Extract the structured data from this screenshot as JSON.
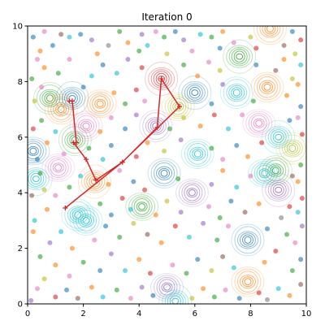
{
  "chart_data": {
    "type": "scatter",
    "title": "Iteration 0",
    "xlabel": "",
    "ylabel": "",
    "xlim": [
      0,
      10
    ],
    "ylim": [
      0,
      10
    ],
    "xticks": [
      "0",
      "2",
      "4",
      "6",
      "8",
      "10"
    ],
    "yticks": [
      "0",
      "2",
      "4",
      "6",
      "8",
      "10"
    ],
    "grid": false,
    "palette": [
      "#1f77b4",
      "#ff7f0e",
      "#2ca02c",
      "#d62728",
      "#9467bd",
      "#8c564b",
      "#e377c2",
      "#7f7f7f",
      "#bcbd22",
      "#17becf"
    ],
    "contour_centers": [
      {
        "x": 0.2,
        "y": 5.5,
        "color": "#1f77b4"
      },
      {
        "x": 0.3,
        "y": 4.5,
        "color": "#17becf"
      },
      {
        "x": 0.8,
        "y": 7.4,
        "color": "#2ca02c"
      },
      {
        "x": 1.2,
        "y": 7.0,
        "color": "#ff7f0e"
      },
      {
        "x": 1.1,
        "y": 4.9,
        "color": "#e377c2"
      },
      {
        "x": 1.6,
        "y": 7.4,
        "color": "#1f77b4"
      },
      {
        "x": 1.7,
        "y": 5.9,
        "color": "#2ca02c"
      },
      {
        "x": 2.1,
        "y": 6.4,
        "color": "#e377c2"
      },
      {
        "x": 2.6,
        "y": 7.2,
        "color": "#ff7f0e"
      },
      {
        "x": 2.4,
        "y": 4.4,
        "color": "#ff7f0e"
      },
      {
        "x": 1.8,
        "y": 3.2,
        "color": "#17becf"
      },
      {
        "x": 2.1,
        "y": 3.0,
        "color": "#17becf"
      },
      {
        "x": 4.1,
        "y": 3.5,
        "color": "#2ca02c"
      },
      {
        "x": 4.8,
        "y": 8.1,
        "color": "#d62728"
      },
      {
        "x": 4.6,
        "y": 6.4,
        "color": "#9467bd"
      },
      {
        "x": 4.9,
        "y": 4.7,
        "color": "#1f77b4"
      },
      {
        "x": 5.4,
        "y": 7.1,
        "color": "#bcbd22"
      },
      {
        "x": 6.0,
        "y": 7.6,
        "color": "#1f77b4"
      },
      {
        "x": 7.5,
        "y": 7.6,
        "color": "#17becf"
      },
      {
        "x": 6.1,
        "y": 5.4,
        "color": "#17becf"
      },
      {
        "x": 5.9,
        "y": 4.0,
        "color": "#9467bd"
      },
      {
        "x": 7.6,
        "y": 8.9,
        "color": "#2ca02c"
      },
      {
        "x": 8.7,
        "y": 9.9,
        "color": "#ff7f0e"
      },
      {
        "x": 8.6,
        "y": 7.8,
        "color": "#ff7f0e"
      },
      {
        "x": 8.3,
        "y": 6.5,
        "color": "#e377c2"
      },
      {
        "x": 9.0,
        "y": 6.0,
        "color": "#17becf"
      },
      {
        "x": 9.5,
        "y": 5.6,
        "color": "#bcbd22"
      },
      {
        "x": 8.9,
        "y": 4.8,
        "color": "#2ca02c"
      },
      {
        "x": 8.5,
        "y": 4.7,
        "color": "#17becf"
      },
      {
        "x": 9.0,
        "y": 4.1,
        "color": "#9467bd"
      },
      {
        "x": 7.9,
        "y": 2.3,
        "color": "#1f77b4"
      },
      {
        "x": 7.9,
        "y": 0.8,
        "color": "#ff7f0e"
      },
      {
        "x": 5.0,
        "y": 0.6,
        "color": "#9467bd"
      },
      {
        "x": 5.3,
        "y": 0.1,
        "color": "#17becf"
      }
    ],
    "path_series": {
      "color": "#d62728",
      "x": [
        1.5,
        1.6,
        1.75,
        1.65,
        2.1,
        2.45,
        3.4,
        4.65,
        4.8,
        5.45,
        3.4,
        1.35
      ],
      "y": [
        7.3,
        7.3,
        5.8,
        5.8,
        5.2,
        4.45,
        5.1,
        6.35,
        8.1,
        7.1,
        5.1,
        3.45
      ]
    },
    "points": [
      {
        "x": 0.12,
        "y": 0.12,
        "c": 4
      },
      {
        "x": 0.35,
        "y": 0.55,
        "c": 6
      },
      {
        "x": 0.45,
        "y": 1.7,
        "c": 2
      },
      {
        "x": 0.2,
        "y": 2.6,
        "c": 1
      },
      {
        "x": 0.25,
        "y": 3.0,
        "c": 9
      },
      {
        "x": 0.15,
        "y": 3.9,
        "c": 5
      },
      {
        "x": 0.45,
        "y": 4.7,
        "c": 2
      },
      {
        "x": 0.35,
        "y": 5.2,
        "c": 0
      },
      {
        "x": 0.2,
        "y": 6.3,
        "c": 3
      },
      {
        "x": 0.25,
        "y": 7.3,
        "c": 8
      },
      {
        "x": 0.15,
        "y": 8.1,
        "c": 2
      },
      {
        "x": 0.35,
        "y": 8.8,
        "c": 6
      },
      {
        "x": 0.2,
        "y": 9.6,
        "c": 0
      },
      {
        "x": 0.45,
        "y": 9.1,
        "c": 1
      },
      {
        "x": 0.6,
        "y": 9.8,
        "c": 6
      },
      {
        "x": 0.9,
        "y": 9.3,
        "c": 0
      },
      {
        "x": 1.2,
        "y": 9.7,
        "c": 5
      },
      {
        "x": 1.5,
        "y": 9.6,
        "c": 9
      },
      {
        "x": 1.9,
        "y": 9.7,
        "c": 0
      },
      {
        "x": 2.3,
        "y": 9.5,
        "c": 4
      },
      {
        "x": 2.9,
        "y": 9.3,
        "c": 7
      },
      {
        "x": 3.3,
        "y": 9.8,
        "c": 2
      },
      {
        "x": 3.6,
        "y": 9.4,
        "c": 1
      },
      {
        "x": 4.1,
        "y": 9.7,
        "c": 4
      },
      {
        "x": 4.3,
        "y": 9.3,
        "c": 9
      },
      {
        "x": 4.6,
        "y": 9.8,
        "c": 6
      },
      {
        "x": 4.9,
        "y": 9.6,
        "c": 2
      },
      {
        "x": 5.3,
        "y": 9.8,
        "c": 0
      },
      {
        "x": 5.6,
        "y": 9.5,
        "c": 4
      },
      {
        "x": 6.2,
        "y": 9.7,
        "c": 9
      },
      {
        "x": 6.6,
        "y": 9.6,
        "c": 2
      },
      {
        "x": 7.0,
        "y": 9.8,
        "c": 1
      },
      {
        "x": 7.4,
        "y": 9.4,
        "c": 6
      },
      {
        "x": 8.0,
        "y": 9.6,
        "c": 8
      },
      {
        "x": 9.2,
        "y": 9.3,
        "c": 5
      },
      {
        "x": 9.5,
        "y": 9.8,
        "c": 0
      },
      {
        "x": 9.8,
        "y": 9.5,
        "c": 3
      },
      {
        "x": 9.6,
        "y": 9.0,
        "c": 8
      },
      {
        "x": 9.8,
        "y": 8.6,
        "c": 9
      },
      {
        "x": 9.7,
        "y": 7.9,
        "c": 1
      },
      {
        "x": 9.8,
        "y": 7.1,
        "c": 0
      },
      {
        "x": 9.7,
        "y": 6.7,
        "c": 6
      },
      {
        "x": 9.85,
        "y": 6.1,
        "c": 3
      },
      {
        "x": 9.8,
        "y": 5.0,
        "c": 2
      },
      {
        "x": 9.7,
        "y": 4.4,
        "c": 1
      },
      {
        "x": 9.85,
        "y": 3.8,
        "c": 3
      },
      {
        "x": 9.7,
        "y": 3.3,
        "c": 9
      },
      {
        "x": 9.85,
        "y": 2.8,
        "c": 4
      },
      {
        "x": 9.6,
        "y": 2.2,
        "c": 6
      },
      {
        "x": 9.8,
        "y": 1.6,
        "c": 0
      },
      {
        "x": 9.5,
        "y": 1.2,
        "c": 2
      },
      {
        "x": 9.8,
        "y": 0.7,
        "c": 5
      },
      {
        "x": 9.4,
        "y": 0.3,
        "c": 1
      },
      {
        "x": 9.0,
        "y": 0.55,
        "c": 9
      },
      {
        "x": 8.6,
        "y": 0.15,
        "c": 7
      },
      {
        "x": 8.3,
        "y": 0.4,
        "c": 3
      },
      {
        "x": 7.6,
        "y": 0.2,
        "c": 0
      },
      {
        "x": 7.1,
        "y": 0.5,
        "c": 6
      },
      {
        "x": 6.7,
        "y": 0.25,
        "c": 2
      },
      {
        "x": 6.3,
        "y": 0.55,
        "c": 1
      },
      {
        "x": 5.9,
        "y": 0.2,
        "c": 8
      },
      {
        "x": 4.5,
        "y": 0.3,
        "c": 0
      },
      {
        "x": 4.1,
        "y": 0.6,
        "c": 4
      },
      {
        "x": 3.7,
        "y": 0.2,
        "c": 6
      },
      {
        "x": 3.2,
        "y": 0.5,
        "c": 2
      },
      {
        "x": 2.7,
        "y": 0.25,
        "c": 9
      },
      {
        "x": 2.3,
        "y": 0.6,
        "c": 1
      },
      {
        "x": 1.8,
        "y": 0.2,
        "c": 5
      },
      {
        "x": 1.4,
        "y": 0.5,
        "c": 0
      },
      {
        "x": 1.0,
        "y": 0.25,
        "c": 3
      },
      {
        "x": 0.6,
        "y": 0.9,
        "c": 8
      },
      {
        "x": 1.0,
        "y": 1.4,
        "c": 1
      },
      {
        "x": 1.5,
        "y": 1.0,
        "c": 6
      },
      {
        "x": 2.0,
        "y": 1.5,
        "c": 2
      },
      {
        "x": 2.6,
        "y": 1.2,
        "c": 0
      },
      {
        "x": 3.0,
        "y": 1.8,
        "c": 4
      },
      {
        "x": 3.5,
        "y": 1.2,
        "c": 9
      },
      {
        "x": 4.0,
        "y": 1.6,
        "c": 1
      },
      {
        "x": 4.4,
        "y": 1.1,
        "c": 3
      },
      {
        "x": 5.2,
        "y": 1.4,
        "c": 6
      },
      {
        "x": 5.7,
        "y": 1.1,
        "c": 2
      },
      {
        "x": 6.1,
        "y": 1.6,
        "c": 0
      },
      {
        "x": 6.6,
        "y": 1.2,
        "c": 8
      },
      {
        "x": 7.0,
        "y": 1.7,
        "c": 5
      },
      {
        "x": 7.4,
        "y": 1.3,
        "c": 9
      },
      {
        "x": 8.5,
        "y": 1.5,
        "c": 1
      },
      {
        "x": 8.9,
        "y": 1.9,
        "c": 3
      },
      {
        "x": 9.3,
        "y": 2.5,
        "c": 2
      },
      {
        "x": 0.8,
        "y": 2.2,
        "c": 4
      },
      {
        "x": 1.2,
        "y": 2.6,
        "c": 9
      },
      {
        "x": 1.6,
        "y": 2.0,
        "c": 1
      },
      {
        "x": 2.4,
        "y": 2.3,
        "c": 6
      },
      {
        "x": 2.8,
        "y": 2.8,
        "c": 0
      },
      {
        "x": 3.3,
        "y": 2.4,
        "c": 2
      },
      {
        "x": 3.8,
        "y": 2.9,
        "c": 8
      },
      {
        "x": 4.3,
        "y": 2.5,
        "c": 5
      },
      {
        "x": 4.8,
        "y": 2.2,
        "c": 1
      },
      {
        "x": 5.3,
        "y": 2.8,
        "c": 3
      },
      {
        "x": 5.8,
        "y": 2.4,
        "c": 9
      },
      {
        "x": 6.3,
        "y": 2.9,
        "c": 4
      },
      {
        "x": 6.8,
        "y": 2.3,
        "c": 2
      },
      {
        "x": 7.2,
        "y": 2.8,
        "c": 6
      },
      {
        "x": 8.6,
        "y": 2.7,
        "c": 0
      },
      {
        "x": 9.1,
        "y": 3.1,
        "c": 7
      },
      {
        "x": 0.7,
        "y": 3.4,
        "c": 1
      },
      {
        "x": 1.0,
        "y": 3.9,
        "c": 6
      },
      {
        "x": 2.6,
        "y": 3.6,
        "c": 2
      },
      {
        "x": 3.0,
        "y": 3.2,
        "c": 0
      },
      {
        "x": 3.4,
        "y": 3.8,
        "c": 3
      },
      {
        "x": 3.7,
        "y": 3.4,
        "c": 9
      },
      {
        "x": 4.6,
        "y": 3.2,
        "c": 1
      },
      {
        "x": 5.0,
        "y": 3.7,
        "c": 8
      },
      {
        "x": 5.5,
        "y": 3.3,
        "c": 4
      },
      {
        "x": 6.5,
        "y": 3.5,
        "c": 6
      },
      {
        "x": 6.9,
        "y": 3.1,
        "c": 2
      },
      {
        "x": 7.3,
        "y": 3.7,
        "c": 0
      },
      {
        "x": 7.8,
        "y": 3.3,
        "c": 5
      },
      {
        "x": 8.3,
        "y": 3.6,
        "c": 1
      },
      {
        "x": 9.4,
        "y": 3.5,
        "c": 3
      },
      {
        "x": 0.6,
        "y": 4.1,
        "c": 8
      },
      {
        "x": 1.5,
        "y": 4.2,
        "c": 2
      },
      {
        "x": 1.9,
        "y": 4.6,
        "c": 9
      },
      {
        "x": 2.9,
        "y": 4.3,
        "c": 1
      },
      {
        "x": 3.3,
        "y": 4.8,
        "c": 6
      },
      {
        "x": 3.8,
        "y": 4.4,
        "c": 0
      },
      {
        "x": 4.2,
        "y": 4.1,
        "c": 3
      },
      {
        "x": 5.4,
        "y": 4.5,
        "c": 2
      },
      {
        "x": 6.6,
        "y": 4.3,
        "c": 4
      },
      {
        "x": 7.0,
        "y": 4.8,
        "c": 1
      },
      {
        "x": 7.5,
        "y": 4.2,
        "c": 9
      },
      {
        "x": 8.0,
        "y": 4.6,
        "c": 6
      },
      {
        "x": 9.5,
        "y": 4.6,
        "c": 5
      },
      {
        "x": 0.7,
        "y": 5.8,
        "c": 1
      },
      {
        "x": 1.3,
        "y": 5.4,
        "c": 6
      },
      {
        "x": 2.2,
        "y": 5.6,
        "c": 2
      },
      {
        "x": 2.7,
        "y": 5.2,
        "c": 9
      },
      {
        "x": 3.0,
        "y": 5.7,
        "c": 0
      },
      {
        "x": 3.9,
        "y": 5.3,
        "c": 3
      },
      {
        "x": 4.3,
        "y": 5.8,
        "c": 1
      },
      {
        "x": 4.9,
        "y": 5.5,
        "c": 8
      },
      {
        "x": 5.5,
        "y": 5.9,
        "c": 4
      },
      {
        "x": 6.6,
        "y": 5.6,
        "c": 2
      },
      {
        "x": 7.0,
        "y": 5.2,
        "c": 6
      },
      {
        "x": 7.5,
        "y": 5.7,
        "c": 0
      },
      {
        "x": 7.9,
        "y": 5.3,
        "c": 1
      },
      {
        "x": 8.4,
        "y": 5.8,
        "c": 3
      },
      {
        "x": 0.5,
        "y": 6.6,
        "c": 2
      },
      {
        "x": 1.0,
        "y": 6.2,
        "c": 9
      },
      {
        "x": 2.6,
        "y": 6.2,
        "c": 1
      },
      {
        "x": 3.0,
        "y": 6.7,
        "c": 6
      },
      {
        "x": 3.5,
        "y": 6.3,
        "c": 0
      },
      {
        "x": 3.9,
        "y": 6.8,
        "c": 4
      },
      {
        "x": 5.1,
        "y": 6.3,
        "c": 2
      },
      {
        "x": 5.6,
        "y": 6.7,
        "c": 8
      },
      {
        "x": 6.2,
        "y": 6.4,
        "c": 1
      },
      {
        "x": 6.7,
        "y": 6.8,
        "c": 3
      },
      {
        "x": 7.2,
        "y": 6.3,
        "c": 9
      },
      {
        "x": 7.7,
        "y": 6.8,
        "c": 6
      },
      {
        "x": 9.4,
        "y": 6.6,
        "c": 0
      },
      {
        "x": 0.5,
        "y": 7.8,
        "c": 6
      },
      {
        "x": 2.0,
        "y": 7.8,
        "c": 0
      },
      {
        "x": 2.3,
        "y": 8.2,
        "c": 9
      },
      {
        "x": 3.1,
        "y": 7.6,
        "c": 1
      },
      {
        "x": 3.5,
        "y": 7.2,
        "c": 2
      },
      {
        "x": 3.9,
        "y": 7.7,
        "c": 3
      },
      {
        "x": 4.2,
        "y": 7.3,
        "c": 6
      },
      {
        "x": 6.6,
        "y": 7.2,
        "c": 0
      },
      {
        "x": 7.0,
        "y": 7.9,
        "c": 4
      },
      {
        "x": 8.1,
        "y": 7.3,
        "c": 2
      },
      {
        "x": 9.3,
        "y": 7.5,
        "c": 1
      },
      {
        "x": 9.5,
        "y": 8.1,
        "c": 8
      },
      {
        "x": 0.6,
        "y": 8.5,
        "c": 1
      },
      {
        "x": 1.1,
        "y": 8.3,
        "c": 2
      },
      {
        "x": 1.5,
        "y": 8.8,
        "c": 6
      },
      {
        "x": 2.7,
        "y": 8.6,
        "c": 0
      },
      {
        "x": 3.2,
        "y": 8.3,
        "c": 9
      },
      {
        "x": 3.6,
        "y": 8.8,
        "c": 4
      },
      {
        "x": 4.1,
        "y": 8.5,
        "c": 3
      },
      {
        "x": 5.6,
        "y": 8.6,
        "c": 2
      },
      {
        "x": 6.1,
        "y": 8.2,
        "c": 1
      },
      {
        "x": 6.5,
        "y": 8.7,
        "c": 6
      },
      {
        "x": 6.9,
        "y": 8.4,
        "c": 8
      },
      {
        "x": 8.2,
        "y": 8.6,
        "c": 0
      },
      {
        "x": 8.9,
        "y": 8.4,
        "c": 5
      },
      {
        "x": 9.2,
        "y": 8.8,
        "c": 1
      },
      {
        "x": 2.5,
        "y": 9.0,
        "c": 1
      },
      {
        "x": 4.0,
        "y": 9.1,
        "c": 2
      },
      {
        "x": 5.0,
        "y": 9.0,
        "c": 8
      },
      {
        "x": 5.9,
        "y": 9.1,
        "c": 6
      },
      {
        "x": 6.9,
        "y": 9.2,
        "c": 0
      },
      {
        "x": 8.2,
        "y": 9.2,
        "c": 3
      }
    ]
  }
}
